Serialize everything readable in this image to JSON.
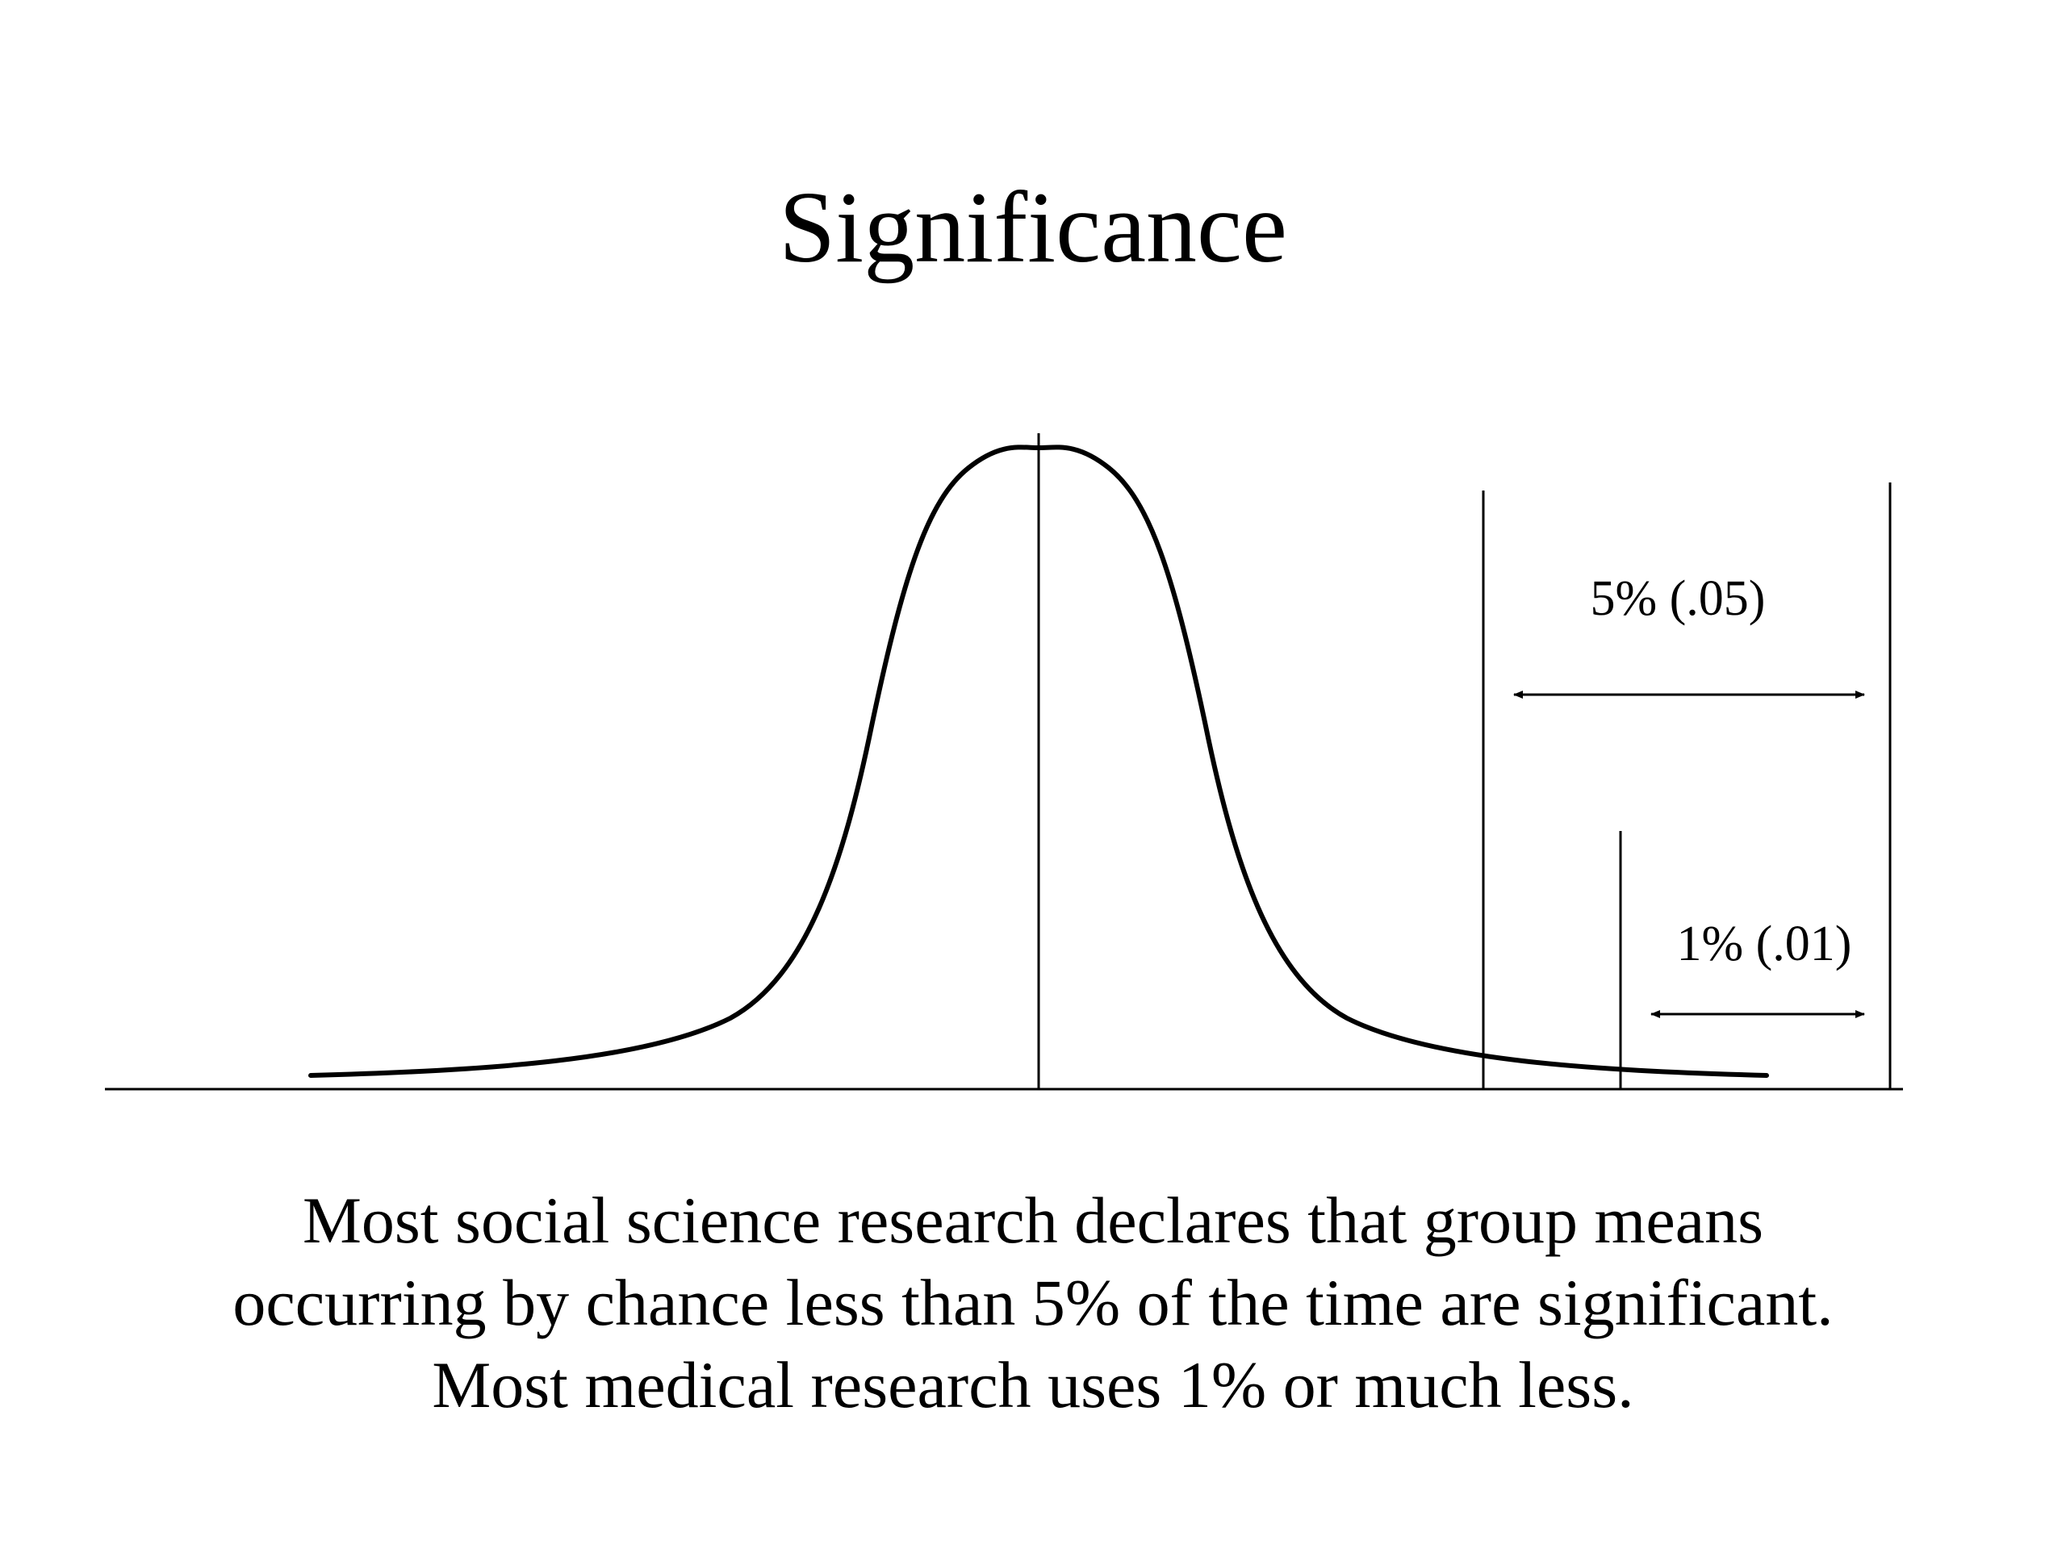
{
  "slide": {
    "title": "Significance",
    "labels": {
      "five_percent": "5% (.05)",
      "one_percent": "1% (.01)"
    },
    "caption_lines": [
      "Most social science research declares that group means",
      "occurring by chance less than 5% of the time are significant.",
      "Most medical research uses 1% or much less."
    ]
  }
}
